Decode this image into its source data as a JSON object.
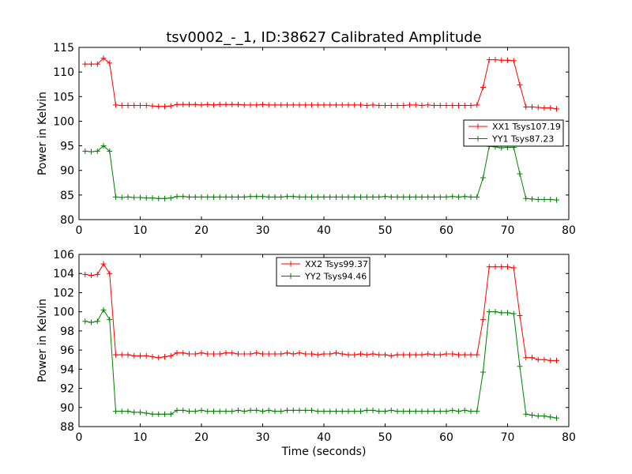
{
  "figure": {
    "title": "tsv0002_-_1, ID:38627 Calibrated Amplitude"
  },
  "chart_data": [
    {
      "type": "line",
      "ylabel": "Power in Kelvin",
      "xlabel": "",
      "xlim": [
        0,
        80
      ],
      "ylim": [
        80,
        115
      ],
      "xticks": [
        0,
        10,
        20,
        30,
        40,
        50,
        60,
        70,
        80
      ],
      "yticks": [
        80,
        85,
        90,
        95,
        100,
        105,
        110,
        115
      ],
      "legend_position": "right",
      "x": [
        1,
        2,
        3,
        4,
        5,
        6,
        7,
        8,
        9,
        10,
        11,
        12,
        13,
        14,
        15,
        16,
        17,
        18,
        19,
        20,
        21,
        22,
        23,
        24,
        25,
        26,
        27,
        28,
        29,
        30,
        31,
        32,
        33,
        34,
        35,
        36,
        37,
        38,
        39,
        40,
        41,
        42,
        43,
        44,
        45,
        46,
        47,
        48,
        49,
        50,
        51,
        52,
        53,
        54,
        55,
        56,
        57,
        58,
        59,
        60,
        61,
        62,
        63,
        64,
        65,
        66,
        67,
        68,
        69,
        70,
        71,
        72,
        73,
        74,
        75,
        76,
        77,
        78
      ],
      "series": [
        {
          "name": "XX1 Tsys107.19",
          "color": "#ff0000",
          "values": [
            111.6,
            111.6,
            111.6,
            112.8,
            111.8,
            103.3,
            103.2,
            103.2,
            103.2,
            103.2,
            103.2,
            103.1,
            103.0,
            103.0,
            103.1,
            103.4,
            103.4,
            103.4,
            103.4,
            103.3,
            103.4,
            103.3,
            103.4,
            103.4,
            103.4,
            103.4,
            103.3,
            103.3,
            103.3,
            103.4,
            103.3,
            103.3,
            103.3,
            103.3,
            103.3,
            103.3,
            103.3,
            103.3,
            103.3,
            103.3,
            103.3,
            103.3,
            103.3,
            103.3,
            103.3,
            103.3,
            103.2,
            103.3,
            103.2,
            103.2,
            103.2,
            103.2,
            103.2,
            103.3,
            103.3,
            103.2,
            103.3,
            103.2,
            103.2,
            103.2,
            103.2,
            103.2,
            103.2,
            103.2,
            103.3,
            106.9,
            112.5,
            112.5,
            112.4,
            112.4,
            112.3,
            107.4,
            102.9,
            102.9,
            102.8,
            102.7,
            102.7,
            102.5
          ]
        },
        {
          "name": "YY1 Tsys87.23",
          "color": "#008000",
          "values": [
            93.9,
            93.8,
            93.9,
            95.0,
            93.9,
            84.6,
            84.5,
            84.6,
            84.5,
            84.5,
            84.4,
            84.4,
            84.3,
            84.3,
            84.4,
            84.7,
            84.7,
            84.6,
            84.6,
            84.6,
            84.6,
            84.6,
            84.6,
            84.6,
            84.6,
            84.6,
            84.6,
            84.7,
            84.7,
            84.7,
            84.6,
            84.6,
            84.6,
            84.7,
            84.7,
            84.6,
            84.6,
            84.6,
            84.6,
            84.6,
            84.6,
            84.6,
            84.6,
            84.6,
            84.6,
            84.6,
            84.6,
            84.6,
            84.6,
            84.7,
            84.6,
            84.6,
            84.6,
            84.6,
            84.6,
            84.6,
            84.6,
            84.6,
            84.6,
            84.6,
            84.7,
            84.6,
            84.7,
            84.6,
            84.6,
            88.5,
            94.9,
            94.8,
            94.6,
            94.7,
            94.7,
            89.3,
            84.3,
            84.2,
            84.1,
            84.1,
            84.1,
            84.0
          ]
        }
      ]
    },
    {
      "type": "line",
      "ylabel": "Power in Kelvin",
      "xlabel": "Time (seconds)",
      "xlim": [
        0,
        80
      ],
      "ylim": [
        88,
        106
      ],
      "xticks": [
        0,
        10,
        20,
        30,
        40,
        50,
        60,
        70,
        80
      ],
      "yticks": [
        88,
        90,
        92,
        94,
        96,
        98,
        100,
        102,
        104,
        106
      ],
      "legend_position": "top-center",
      "x": [
        1,
        2,
        3,
        4,
        5,
        6,
        7,
        8,
        9,
        10,
        11,
        12,
        13,
        14,
        15,
        16,
        17,
        18,
        19,
        20,
        21,
        22,
        23,
        24,
        25,
        26,
        27,
        28,
        29,
        30,
        31,
        32,
        33,
        34,
        35,
        36,
        37,
        38,
        39,
        40,
        41,
        42,
        43,
        44,
        45,
        46,
        47,
        48,
        49,
        50,
        51,
        52,
        53,
        54,
        55,
        56,
        57,
        58,
        59,
        60,
        61,
        62,
        63,
        64,
        65,
        66,
        67,
        68,
        69,
        70,
        71,
        72,
        73,
        74,
        75,
        76,
        77,
        78
      ],
      "series": [
        {
          "name": "XX2 Tsys99.37",
          "color": "#ff0000",
          "values": [
            103.9,
            103.8,
            103.9,
            105.0,
            104.0,
            95.5,
            95.5,
            95.5,
            95.4,
            95.4,
            95.4,
            95.3,
            95.2,
            95.3,
            95.4,
            95.7,
            95.7,
            95.6,
            95.6,
            95.7,
            95.6,
            95.6,
            95.6,
            95.7,
            95.7,
            95.6,
            95.6,
            95.6,
            95.7,
            95.6,
            95.6,
            95.6,
            95.6,
            95.7,
            95.6,
            95.7,
            95.6,
            95.6,
            95.5,
            95.6,
            95.6,
            95.7,
            95.6,
            95.5,
            95.5,
            95.6,
            95.5,
            95.6,
            95.5,
            95.5,
            95.4,
            95.5,
            95.5,
            95.5,
            95.5,
            95.5,
            95.6,
            95.5,
            95.5,
            95.6,
            95.6,
            95.5,
            95.5,
            95.5,
            95.5,
            99.2,
            104.7,
            104.7,
            104.7,
            104.7,
            104.6,
            99.6,
            95.2,
            95.2,
            95.0,
            95.0,
            94.9,
            94.9
          ]
        },
        {
          "name": "YY2 Tsys94.46",
          "color": "#008000",
          "values": [
            99.0,
            98.9,
            99.0,
            100.2,
            99.2,
            89.6,
            89.6,
            89.6,
            89.5,
            89.5,
            89.4,
            89.3,
            89.3,
            89.3,
            89.3,
            89.7,
            89.7,
            89.6,
            89.6,
            89.7,
            89.6,
            89.6,
            89.6,
            89.6,
            89.6,
            89.7,
            89.6,
            89.7,
            89.7,
            89.6,
            89.7,
            89.6,
            89.6,
            89.7,
            89.7,
            89.7,
            89.7,
            89.7,
            89.6,
            89.6,
            89.6,
            89.6,
            89.6,
            89.6,
            89.6,
            89.6,
            89.7,
            89.7,
            89.6,
            89.6,
            89.7,
            89.6,
            89.6,
            89.6,
            89.6,
            89.6,
            89.6,
            89.6,
            89.6,
            89.6,
            89.7,
            89.6,
            89.7,
            89.6,
            89.6,
            93.7,
            100.0,
            100.0,
            99.9,
            99.9,
            99.8,
            94.3,
            89.3,
            89.2,
            89.1,
            89.1,
            89.0,
            88.9
          ]
        }
      ]
    }
  ]
}
